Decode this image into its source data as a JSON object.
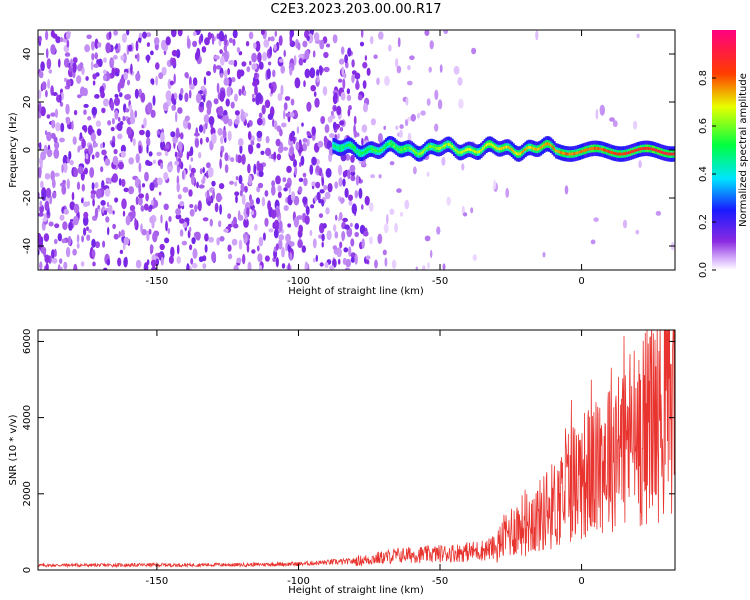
{
  "title": "C2E3.2023.203.00.00.R17",
  "chart_data": [
    {
      "type": "heatmap",
      "xlabel": "Height of straight line (km)",
      "ylabel": "Frequency (Hz)",
      "xlim": [
        -192,
        33
      ],
      "ylim": [
        -50,
        50
      ],
      "xticks": [
        -150,
        -100,
        -50,
        0
      ],
      "yticks": [
        -40,
        -20,
        0,
        20,
        40
      ],
      "colorbar": {
        "label": "Normalized spectral amplitude",
        "range": [
          0,
          1
        ],
        "ticks": [
          0.0,
          0.2,
          0.4,
          0.6,
          0.8
        ],
        "colormap": "rainbow (white-violet-blue-cyan-green-yellow-red-magenta)"
      },
      "description_of_signal": [
        {
          "x_range": [
            -192,
            -75
          ],
          "freq_range": [
            -50,
            50
          ],
          "amplitude": "low, noise (violet)"
        },
        {
          "x_range": [
            -75,
            -30
          ],
          "freq_range": [
            -50,
            50
          ],
          "amplitude": "sparse faint noise"
        },
        {
          "x_range": [
            -88,
            33
          ],
          "freq": 0,
          "amplitude": "0.4-0.9 narrow band, rising toward right"
        }
      ]
    },
    {
      "type": "line",
      "xlabel": "Height of straight line (km)",
      "ylabel": "SNR (10 * v/v)",
      "xlim": [
        -192,
        33
      ],
      "ylim": [
        0,
        6300
      ],
      "xticks": [
        -150,
        -100,
        -50,
        0
      ],
      "yticks": [
        0,
        2000,
        4000,
        6000
      ],
      "color": "#e8332e",
      "x": [
        -192,
        -180,
        -170,
        -160,
        -150,
        -140,
        -130,
        -120,
        -110,
        -100,
        -90,
        -80,
        -75,
        -70,
        -65,
        -60,
        -55,
        -50,
        -45,
        -40,
        -35,
        -30,
        -27,
        -24,
        -20,
        -15,
        -10,
        -7,
        -5,
        -2,
        0,
        5,
        8,
        10,
        13,
        15,
        18,
        20,
        23,
        25,
        28,
        30,
        33
      ],
      "y": [
        120,
        130,
        125,
        130,
        135,
        130,
        140,
        135,
        150,
        160,
        200,
        230,
        280,
        330,
        380,
        400,
        410,
        430,
        450,
        480,
        520,
        600,
        900,
        1100,
        1200,
        1400,
        1700,
        1900,
        2300,
        2400,
        2500,
        2600,
        3000,
        3200,
        3400,
        3300,
        3600,
        3500,
        3800,
        4000,
        4100,
        4300,
        4800
      ]
    }
  ]
}
